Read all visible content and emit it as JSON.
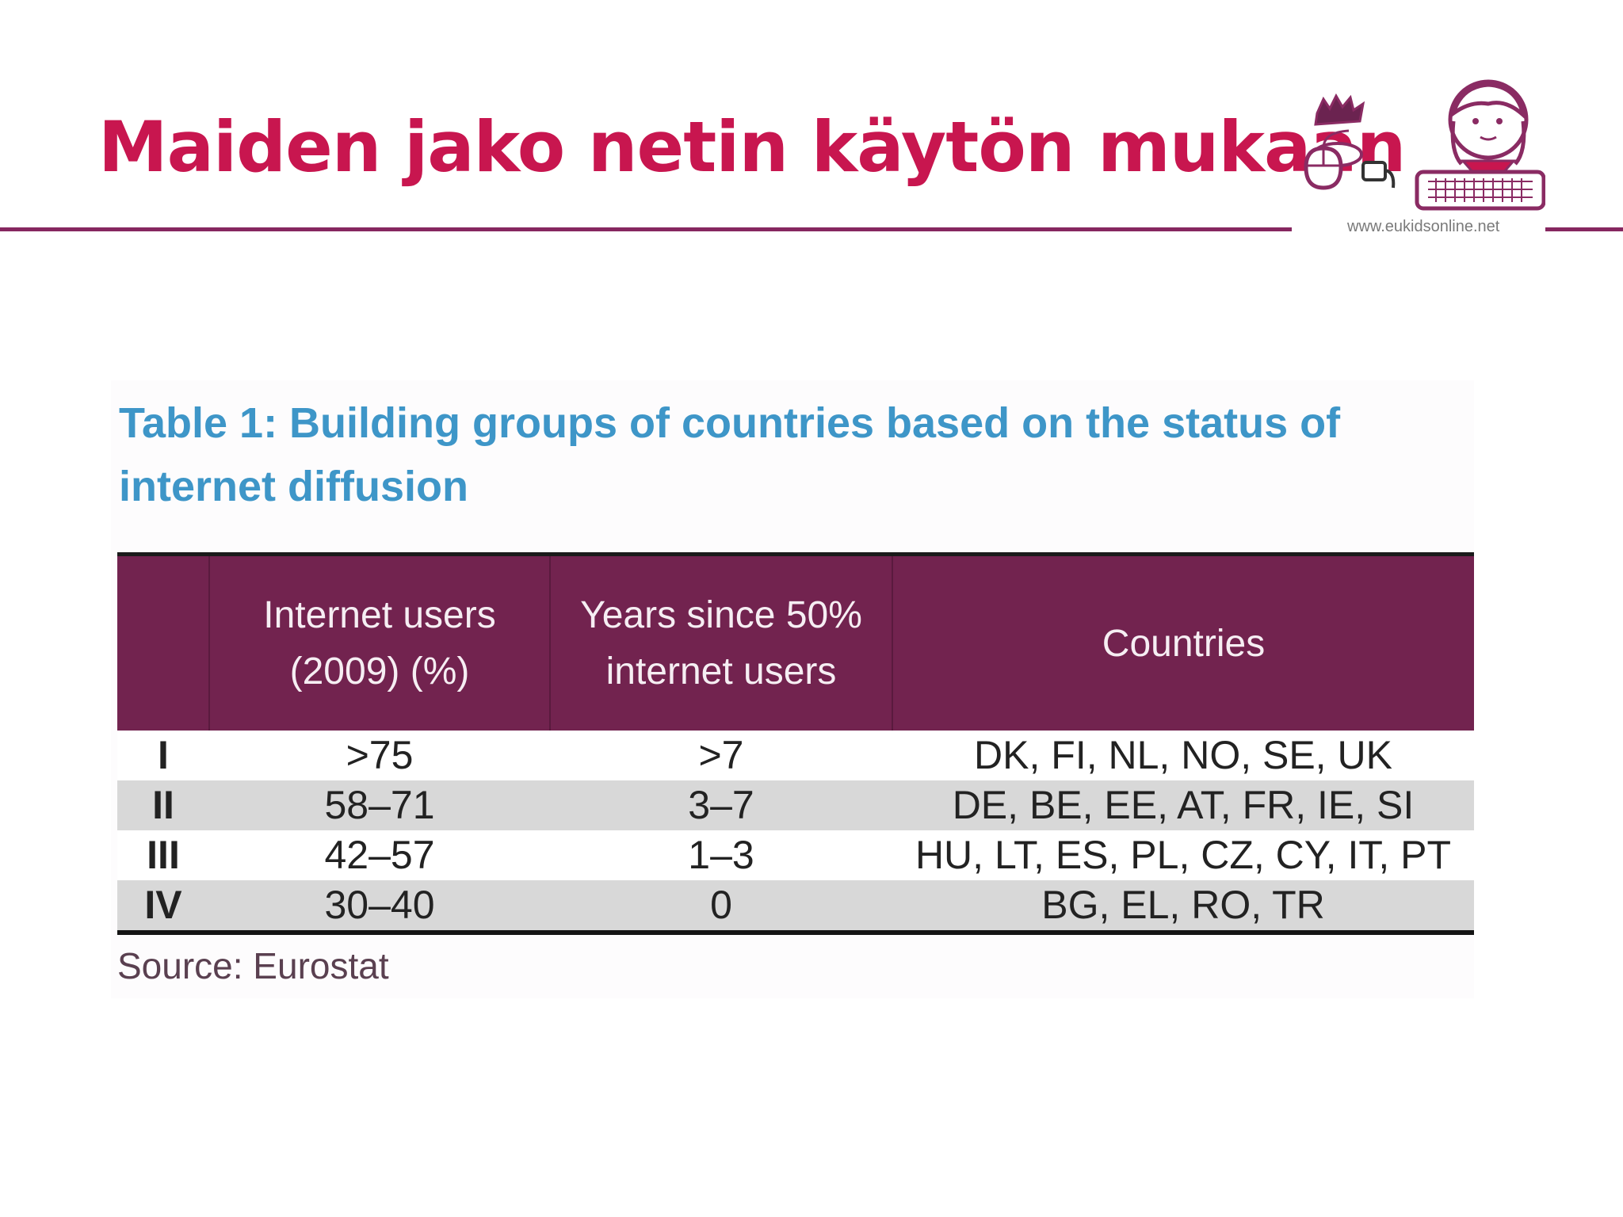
{
  "slide": {
    "title": "Maiden jako netin käytön mukaan"
  },
  "logo": {
    "url_text": "www.eukidsonline.net"
  },
  "table": {
    "caption": "Table 1: Building groups of countries based on the status of internet diffusion",
    "headers": [
      "",
      "Internet users (2009) (%)",
      "Years since 50% internet users",
      "Countries"
    ],
    "rows": [
      {
        "group": "I",
        "internet_users": ">75",
        "years_since": ">7",
        "countries": "DK, FI, NL, NO, SE, UK"
      },
      {
        "group": "II",
        "internet_users": "58–71",
        "years_since": "3–7",
        "countries": "DE, BE, EE, AT, FR, IE, SI"
      },
      {
        "group": "III",
        "internet_users": "42–57",
        "years_since": "1–3",
        "countries": "HU, LT, ES, PL, CZ, CY, IT, PT"
      },
      {
        "group": "IV",
        "internet_users": "30–40",
        "years_since": "0",
        "countries": "BG, EL, RO, TR"
      }
    ],
    "source": "Source: Eurostat"
  },
  "colors": {
    "title": "#c8164f",
    "rule": "#862760",
    "header_bg": "#72234f",
    "caption": "#3e96c8",
    "stripe": "#d8d8d8"
  }
}
